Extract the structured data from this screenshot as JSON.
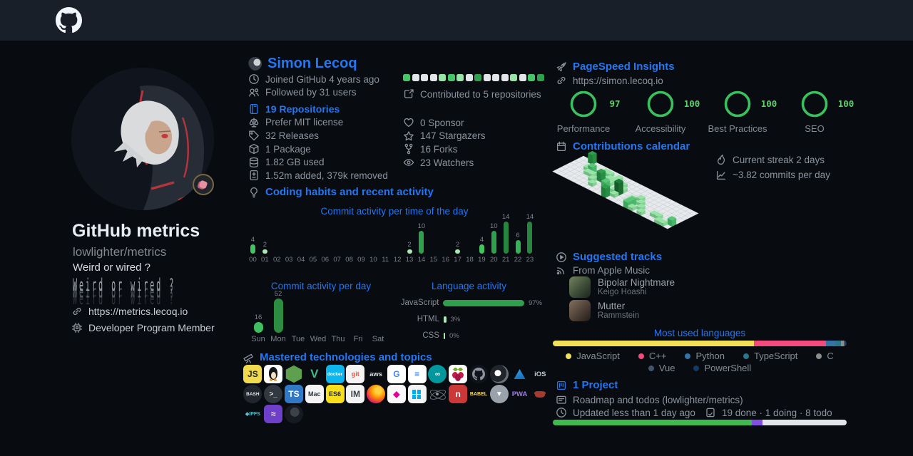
{
  "accent": {
    "blue": "#2476f2",
    "green": "#3fb950",
    "bg": "#080b10",
    "topbar_bg": "#191f29",
    "muted": "#8b949e"
  },
  "icons": {
    "logo": "github-octocat-mark",
    "stat_icons": [
      "clock",
      "people",
      "repo",
      "law",
      "tag",
      "package",
      "database",
      "diff",
      "contributed",
      "heart",
      "star",
      "fork",
      "eye",
      "bulb",
      "telescope",
      "rocket",
      "link",
      "calendar",
      "flame",
      "graph",
      "play",
      "rss",
      "project",
      "note",
      "tasks",
      "cpu"
    ]
  },
  "left": {
    "title": "GitHub metrics",
    "subtitle": "lowlighter/metrics",
    "bio": "Weird or wired ?",
    "website": "https://metrics.lecoq.io",
    "member": "Developer Program Member"
  },
  "user": {
    "name": "Simon Lecoq",
    "joined": "Joined GitHub 4 years ago",
    "followed": "Followed by 31 users",
    "repositories": "19 Repositories",
    "license": "Prefer MIT license",
    "releases": "32 Releases",
    "packages": "1 Package",
    "disk": "1.82 GB used",
    "diff": "1.52m added, 379k removed",
    "contributed": "Contributed to 5 repositories",
    "sponsors": "0 Sponsor",
    "stargazers": "147 Stargazers",
    "forks": "16 Forks",
    "watchers": "23 Watchers"
  },
  "sections": {
    "habits": "Coding habits and recent activity",
    "mastered": "Mastered technologies and topics",
    "pagespeed": "PageSpeed Insights",
    "pagespeed_url": "https://simon.lecoq.io",
    "calendar": "Contributions calendar",
    "streak": "Current streak 2 days",
    "commits_avg": "~3.82 commits per day",
    "tracks": "Suggested tracks",
    "tracks_source": "From Apple Music",
    "languages_title": "Most used languages",
    "project": "1 Project",
    "project_desc": "Roadmap and todos (lowlighter/metrics)",
    "project_updated": "Updated less than 1 day ago",
    "project_counts": "19 done · 1 doing · 8 todo"
  },
  "tracks": [
    {
      "title": "Bipolar Nightmare",
      "artist": "Keigo Hoashi",
      "art": "linear-gradient(135deg,#74845e,#3c4d38 55%,#1d251d)"
    },
    {
      "title": "Mutter",
      "artist": "Rammstein",
      "art": "linear-gradient(135deg,#83705f,#4e4037 55%,#211b17)"
    }
  ],
  "chart_data": [
    {
      "id": "commits_per_hour",
      "type": "bar",
      "title": "Commit activity per time of the day",
      "categories": [
        "00",
        "01",
        "02",
        "03",
        "04",
        "05",
        "06",
        "07",
        "08",
        "09",
        "10",
        "11",
        "12",
        "13",
        "14",
        "15",
        "16",
        "17",
        "18",
        "19",
        "20",
        "21",
        "22",
        "23"
      ],
      "values": [
        4,
        2,
        0,
        0,
        0,
        0,
        0,
        0,
        0,
        0,
        0,
        0,
        0,
        2,
        10,
        0,
        0,
        2,
        0,
        4,
        10,
        14,
        6,
        14
      ],
      "ylim": [
        0,
        14
      ],
      "grid": false
    },
    {
      "id": "commits_per_day",
      "type": "bar",
      "title": "Commit activity per day",
      "categories": [
        "Sun",
        "Mon",
        "Tue",
        "Wed",
        "Thu",
        "Fri",
        "Sat"
      ],
      "values": [
        16,
        52,
        0,
        0,
        0,
        0,
        0
      ],
      "ylim": [
        0,
        52
      ],
      "grid": false
    },
    {
      "id": "language_activity",
      "type": "bar",
      "title": "Language activity",
      "categories": [
        "JavaScript",
        "HTML",
        "CSS"
      ],
      "values": [
        97,
        3,
        0
      ],
      "unit": "%"
    },
    {
      "id": "pagespeed_gauges",
      "type": "bar",
      "categories": [
        "Performance",
        "Accessibility",
        "Best Practices",
        "SEO"
      ],
      "values": [
        97,
        100,
        100,
        100
      ],
      "ylim": [
        0,
        100
      ]
    },
    {
      "id": "contrib_squares",
      "type": "heatmap",
      "levels": [
        2,
        0,
        0,
        0,
        1,
        2,
        1,
        0,
        3,
        0,
        0,
        0,
        1,
        0,
        2,
        3
      ],
      "palette": [
        "#e2e6e9",
        "#98e3a6",
        "#46c468",
        "#2f9e4d"
      ]
    },
    {
      "id": "most_used_languages",
      "type": "bar",
      "title": "Most used languages",
      "series": [
        {
          "name": "JavaScript",
          "value": 68.5,
          "color": "#f1e05a"
        },
        {
          "name": "C++",
          "value": 24.5,
          "color": "#f34b7d"
        },
        {
          "name": "Python",
          "value": 3.0,
          "color": "#3572a5"
        },
        {
          "name": "TypeScript",
          "value": 2.0,
          "color": "#2b7489"
        },
        {
          "name": "C",
          "value": 1.0,
          "color": "#8c8c8c"
        },
        {
          "name": "Vue",
          "value": 0.6,
          "color": "#41546b"
        },
        {
          "name": "PowerShell",
          "value": 0.4,
          "color": "#123b63"
        }
      ]
    },
    {
      "id": "project_progress",
      "type": "bar",
      "series": [
        {
          "name": "done",
          "value": 67.8,
          "color": "#3fb950"
        },
        {
          "name": "doing",
          "value": 3.6,
          "color": "#8250df"
        },
        {
          "name": "todo",
          "value": 28.6,
          "color": "#e2e6e9"
        }
      ]
    },
    {
      "id": "isometric_calendar",
      "type": "heatmap",
      "rows": [
        "00300000000000000000000000",
        "00000011010000000000000000",
        "00012010110100000000000000",
        "00001103010210001000000000",
        "00000010020140010100000000",
        "00000001001010012010011002",
        "00000000000300002101000110"
      ]
    }
  ],
  "tech_icons": [
    {
      "name": "javascript",
      "label": "JS",
      "kind": "tile",
      "bg": "#f0db4f",
      "fg": "#23272e"
    },
    {
      "name": "linux-tux",
      "label": "",
      "kind": "art-penguin",
      "bg": "#ffffff",
      "fg": "#111111"
    },
    {
      "name": "nodejs",
      "label": "",
      "kind": "art-hexagon",
      "bg": "#5fa04e",
      "fg": "#ffffff"
    },
    {
      "name": "vuejs",
      "label": "V",
      "kind": "text",
      "bg": "",
      "fg": "#41b883"
    },
    {
      "name": "docker",
      "label": "docker",
      "kind": "tile",
      "bg": "#0db7ed",
      "fg": "#ffffff"
    },
    {
      "name": "git",
      "label": "git",
      "kind": "tile",
      "bg": "#f4f4f4",
      "fg": "#f05033"
    },
    {
      "name": "aws",
      "label": "aws",
      "kind": "text",
      "bg": "",
      "fg": "#d8dee4"
    },
    {
      "name": "google",
      "label": "G",
      "kind": "tile",
      "bg": "#ffffff",
      "fg": "#4285f4"
    },
    {
      "name": "sql-database",
      "label": "≡",
      "kind": "tile",
      "bg": "#ffffff",
      "fg": "#1a73e8"
    },
    {
      "name": "arduino",
      "label": "∞",
      "kind": "circle",
      "bg": "#00979d",
      "fg": "#ffffff"
    },
    {
      "name": "raspberry-pi",
      "label": "",
      "kind": "art-raspberry",
      "bg": "#ffffff",
      "fg": "#c51a4a"
    },
    {
      "name": "github-octocat",
      "label": "",
      "kind": "art-octocat",
      "bg": "#10141a",
      "fg": "#8b949e"
    },
    {
      "name": "lens-swirl",
      "label": "",
      "kind": "art-lens",
      "bg": "#23272e",
      "fg": "#ffffff"
    },
    {
      "name": "azure",
      "label": "",
      "kind": "art-azure",
      "bg": "",
      "fg": "#2f9be8"
    },
    {
      "name": "ios",
      "label": "iOS",
      "kind": "text",
      "bg": "",
      "fg": "#c3cad1"
    },
    {
      "name": "bash",
      "label": "BASH",
      "kind": "circle",
      "bg": "#21262e",
      "fg": "#e8eaed"
    },
    {
      "name": "terminal",
      "label": ">_",
      "kind": "circle",
      "bg": "#31383f",
      "fg": "#e8eaed"
    },
    {
      "name": "typescript",
      "label": "TS",
      "kind": "tile",
      "bg": "#3178c6",
      "fg": "#ffffff"
    },
    {
      "name": "macos",
      "label": "Mac",
      "kind": "tile",
      "bg": "#f4f4f4",
      "fg": "#333a41"
    },
    {
      "name": "es6",
      "label": "ES6",
      "kind": "tile",
      "bg": "#f7df1e",
      "fg": "#23272e"
    },
    {
      "name": "imagemagick",
      "label": "IM",
      "kind": "tile",
      "bg": "#f4f4f4",
      "fg": "#3b4148"
    },
    {
      "name": "firefox",
      "label": "",
      "kind": "art-firefox",
      "bg": "",
      "fg": ""
    },
    {
      "name": "graphql",
      "label": "◆",
      "kind": "tile",
      "bg": "#f8f8f8",
      "fg": "#e10098"
    },
    {
      "name": "windows",
      "label": "",
      "kind": "art-windows",
      "bg": "#f4f4f4",
      "fg": "#00adef"
    },
    {
      "name": "electron",
      "label": "",
      "kind": "art-electron",
      "bg": "#2b3138",
      "fg": "#9fb6bf"
    },
    {
      "name": "npm",
      "label": "n",
      "kind": "tile",
      "bg": "#cb3837",
      "fg": "#ffffff"
    },
    {
      "name": "babel",
      "label": "BABEL",
      "kind": "text",
      "bg": "",
      "fg": "#f5da55"
    },
    {
      "name": "inverted-triangle",
      "label": "▼",
      "kind": "circle",
      "bg": "#9aa3ab",
      "fg": "#ffffff"
    },
    {
      "name": "pwa",
      "label": "PWA",
      "kind": "text",
      "bg": "",
      "fg": "#9f7aea"
    },
    {
      "name": "rust-crab",
      "label": "",
      "kind": "art-crab",
      "bg": "",
      "fg": "#a33b30"
    },
    {
      "name": "ipfs",
      "label": "◆IPFS",
      "kind": "text",
      "bg": "",
      "fg": "#5bbfc9"
    },
    {
      "name": "purple-emblem",
      "label": "≈",
      "kind": "tile",
      "bg": "#6e40c9",
      "fg": "#ffffff"
    },
    {
      "name": "dark-swirl",
      "label": "",
      "kind": "art-lens2",
      "bg": "#171b21",
      "fg": "#3a4149"
    }
  ]
}
